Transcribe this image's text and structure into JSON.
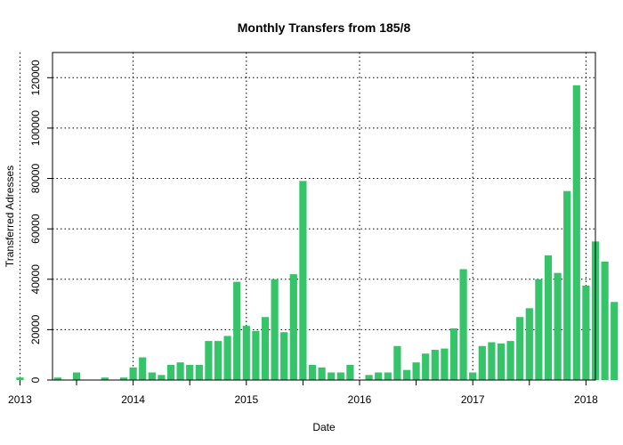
{
  "chart_data": {
    "type": "bar",
    "title": "Monthly Transfers from 185/8",
    "xlabel": "Date",
    "ylabel": "Transferred Adresses",
    "ylim": [
      0,
      130000
    ],
    "yticks": [
      0,
      20000,
      40000,
      60000,
      80000,
      100000,
      120000
    ],
    "xticks": [
      "2013",
      "2014",
      "2015",
      "2016",
      "2017",
      "2018"
    ],
    "grid": true,
    "bar_color": "#36c46a",
    "categories": [
      "2013-01",
      "2013-02",
      "2013-03",
      "2013-04",
      "2013-05",
      "2013-06",
      "2013-07",
      "2013-08",
      "2013-09",
      "2013-10",
      "2013-11",
      "2013-12",
      "2014-01",
      "2014-02",
      "2014-03",
      "2014-04",
      "2014-05",
      "2014-06",
      "2014-07",
      "2014-08",
      "2014-09",
      "2014-10",
      "2014-11",
      "2014-12",
      "2015-01",
      "2015-02",
      "2015-03",
      "2015-04",
      "2015-05",
      "2015-06",
      "2015-07",
      "2015-08",
      "2015-09",
      "2015-10",
      "2015-11",
      "2015-12",
      "2016-01",
      "2016-02",
      "2016-03",
      "2016-04",
      "2016-05",
      "2016-06",
      "2016-07",
      "2016-08",
      "2016-09",
      "2016-10",
      "2016-11",
      "2016-12",
      "2017-01",
      "2017-02",
      "2017-03",
      "2017-04",
      "2017-05",
      "2017-06",
      "2017-07",
      "2017-08",
      "2017-09",
      "2017-10",
      "2017-11",
      "2017-12",
      "2018-01",
      "2018-02",
      "2018-03",
      "2018-04"
    ],
    "values": [
      1000,
      0,
      0,
      0,
      1000,
      0,
      3000,
      0,
      0,
      1000,
      0,
      1000,
      5000,
      9000,
      3000,
      2000,
      6000,
      7000,
      6000,
      6000,
      15500,
      15500,
      17500,
      39000,
      21500,
      19500,
      25000,
      40000,
      19000,
      42000,
      79000,
      6000,
      5000,
      3000,
      3000,
      6000,
      0,
      2000,
      3000,
      3000,
      13500,
      4000,
      7000,
      10500,
      12000,
      12500,
      20500,
      44000,
      3000,
      13500,
      15000,
      14500,
      15500,
      25000,
      28500,
      40000,
      49500,
      42500,
      75000,
      117000,
      37500,
      55000,
      47000,
      31000
    ]
  }
}
